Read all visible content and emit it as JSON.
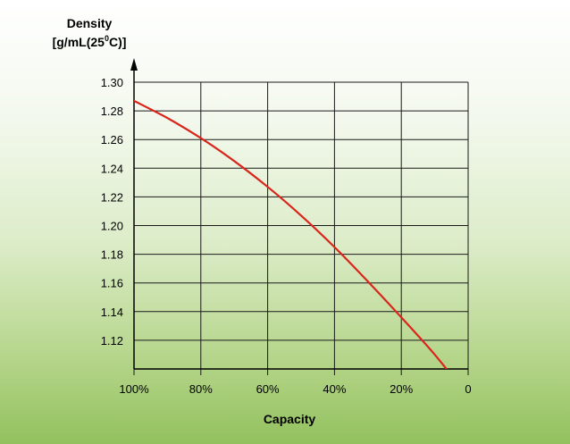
{
  "chart_data": {
    "type": "line",
    "xlabel": "Capacity",
    "ylabel_line1": "Density",
    "ylabel_line2_pre": "[g/mL(25",
    "ylabel_line2_sup": "0",
    "ylabel_line2_post": "C)]",
    "x_ticks": [
      {
        "value": 100,
        "label": "100%"
      },
      {
        "value": 80,
        "label": "80%"
      },
      {
        "value": 60,
        "label": "60%"
      },
      {
        "value": 40,
        "label": "40%"
      },
      {
        "value": 20,
        "label": "20%"
      },
      {
        "value": 0,
        "label": "0"
      }
    ],
    "y_ticks": [
      "1.30",
      "1.28",
      "1.26",
      "1.24",
      "1.22",
      "1.20",
      "1.18",
      "1.16",
      "1.14",
      "1.12"
    ],
    "xlim": [
      100,
      0
    ],
    "ylim": [
      1.1,
      1.3
    ],
    "grid": true,
    "series": [
      {
        "color": "#d9261c",
        "x": [
          100,
          90,
          80,
          70,
          60,
          50,
          40,
          30,
          20,
          10,
          1
        ],
        "y": [
          1.287,
          1.275,
          1.261,
          1.245,
          1.227,
          1.207,
          1.185,
          1.161,
          1.136,
          1.11,
          1.084
        ]
      }
    ]
  }
}
